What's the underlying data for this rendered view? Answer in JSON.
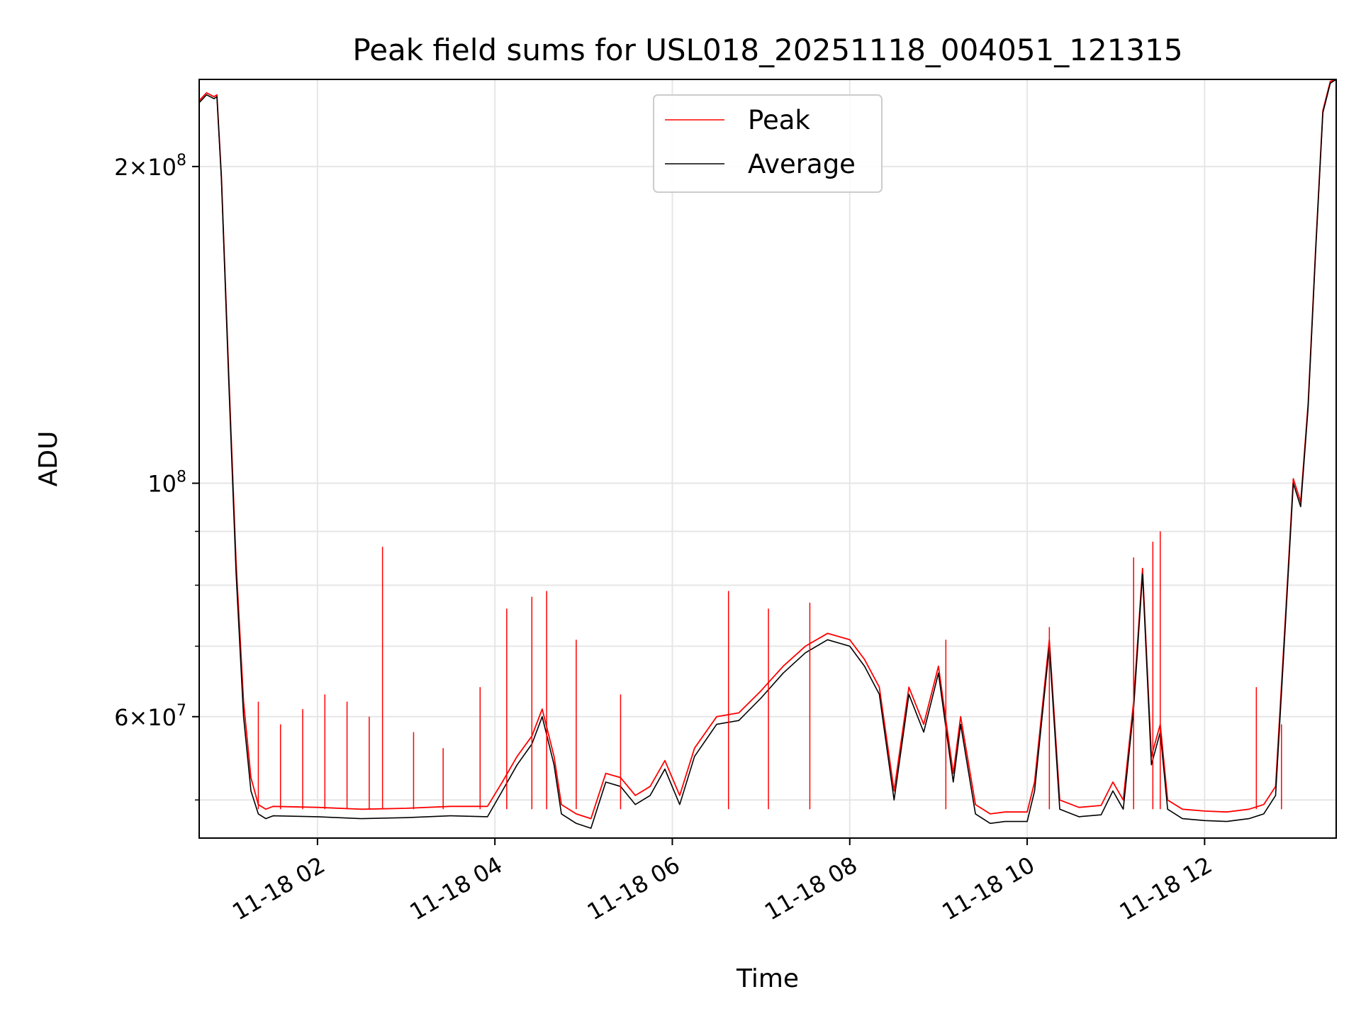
{
  "chart_data": {
    "type": "line",
    "title": "Peak field sums for USL018_20251118_004051_121315",
    "xlabel": "Time",
    "ylabel": "ADU",
    "y_scale": "log",
    "grid": true,
    "legend": {
      "placement": "upper-center",
      "entries": [
        {
          "name": "Peak",
          "color": "#ff0000"
        },
        {
          "name": "Average",
          "color": "#000000"
        }
      ]
    },
    "xlim": [
      "2025-11-18 00:40",
      "2025-11-18 13:29"
    ],
    "ylim": [
      46000000,
      242000000
    ],
    "x_ticks": [
      {
        "t": "2025-11-18 02:00",
        "label": "11-18 02"
      },
      {
        "t": "2025-11-18 04:00",
        "label": "11-18 04"
      },
      {
        "t": "2025-11-18 06:00",
        "label": "11-18 06"
      },
      {
        "t": "2025-11-18 08:00",
        "label": "11-18 08"
      },
      {
        "t": "2025-11-18 10:00",
        "label": "11-18 10"
      },
      {
        "t": "2025-11-18 12:00",
        "label": "11-18 12"
      }
    ],
    "y_major_ticks": [
      {
        "value": 60000000,
        "mantissa": "6",
        "exponent": "7"
      },
      {
        "value": 100000000,
        "mantissa": "",
        "exponent": "8"
      },
      {
        "value": 200000000,
        "mantissa": "2",
        "exponent": "8"
      }
    ],
    "y_minor_ticks": [
      50000000,
      70000000,
      80000000,
      90000000
    ],
    "series": [
      {
        "name": "Average",
        "color": "#000000",
        "x": [
          "2025-11-18 00:40",
          "2025-11-18 00:45",
          "2025-11-18 00:50",
          "2025-11-18 00:52",
          "2025-11-18 00:55",
          "2025-11-18 01:00",
          "2025-11-18 01:05",
          "2025-11-18 01:10",
          "2025-11-18 01:15",
          "2025-11-18 01:20",
          "2025-11-18 01:25",
          "2025-11-18 01:30",
          "2025-11-18 02:00",
          "2025-11-18 02:30",
          "2025-11-18 03:00",
          "2025-11-18 03:30",
          "2025-11-18 03:55",
          "2025-11-18 04:05",
          "2025-11-18 04:15",
          "2025-11-18 04:25",
          "2025-11-18 04:32",
          "2025-11-18 04:40",
          "2025-11-18 04:45",
          "2025-11-18 04:55",
          "2025-11-18 05:05",
          "2025-11-18 05:15",
          "2025-11-18 05:25",
          "2025-11-18 05:35",
          "2025-11-18 05:45",
          "2025-11-18 05:55",
          "2025-11-18 06:05",
          "2025-11-18 06:15",
          "2025-11-18 06:30",
          "2025-11-18 06:45",
          "2025-11-18 07:00",
          "2025-11-18 07:15",
          "2025-11-18 07:30",
          "2025-11-18 07:45",
          "2025-11-18 08:00",
          "2025-11-18 08:10",
          "2025-11-18 08:20",
          "2025-11-18 08:30",
          "2025-11-18 08:40",
          "2025-11-18 08:50",
          "2025-11-18 09:00",
          "2025-11-18 09:10",
          "2025-11-18 09:15",
          "2025-11-18 09:25",
          "2025-11-18 09:35",
          "2025-11-18 09:45",
          "2025-11-18 10:00",
          "2025-11-18 10:05",
          "2025-11-18 10:15",
          "2025-11-18 10:22",
          "2025-11-18 10:35",
          "2025-11-18 10:50",
          "2025-11-18 10:58",
          "2025-11-18 11:05",
          "2025-11-18 11:12",
          "2025-11-18 11:18",
          "2025-11-18 11:24",
          "2025-11-18 11:30",
          "2025-11-18 11:35",
          "2025-11-18 11:45",
          "2025-11-18 12:00",
          "2025-11-18 12:15",
          "2025-11-18 12:30",
          "2025-11-18 12:40",
          "2025-11-18 12:48",
          "2025-11-18 12:55",
          "2025-11-18 13:00",
          "2025-11-18 13:05",
          "2025-11-18 13:10",
          "2025-11-18 13:15",
          "2025-11-18 13:20",
          "2025-11-18 13:25",
          "2025-11-18 13:29"
        ],
        "values": [
          230000000,
          234000000,
          232000000,
          233000000,
          195000000,
          125000000,
          82000000,
          60000000,
          51000000,
          48500000,
          48000000,
          48300000,
          48200000,
          48000000,
          48100000,
          48300000,
          48200000,
          51000000,
          54000000,
          56500000,
          60000000,
          54000000,
          48500000,
          47500000,
          47000000,
          52000000,
          51500000,
          49500000,
          50500000,
          53500000,
          49500000,
          55000000,
          59000000,
          59500000,
          62500000,
          66000000,
          69000000,
          71000000,
          70000000,
          67000000,
          63000000,
          50000000,
          63000000,
          58000000,
          66000000,
          52000000,
          59000000,
          48500000,
          47500000,
          47700000,
          47700000,
          51000000,
          70000000,
          49000000,
          48200000,
          48400000,
          51000000,
          49000000,
          61000000,
          82000000,
          54000000,
          58000000,
          49000000,
          48000000,
          47800000,
          47700000,
          48000000,
          48500000,
          50500000,
          75000000,
          100000000,
          95000000,
          118000000,
          165000000,
          225000000,
          240000000,
          242000000
        ]
      },
      {
        "name": "Peak",
        "color": "#ff0000",
        "x": [
          "2025-11-18 00:40",
          "2025-11-18 00:45",
          "2025-11-18 00:50",
          "2025-11-18 00:52",
          "2025-11-18 00:55",
          "2025-11-18 01:00",
          "2025-11-18 01:05",
          "2025-11-18 01:10",
          "2025-11-18 01:15",
          "2025-11-18 01:20",
          "2025-11-18 01:25",
          "2025-11-18 01:30",
          "2025-11-18 02:00",
          "2025-11-18 02:30",
          "2025-11-18 03:00",
          "2025-11-18 03:30",
          "2025-11-18 03:55",
          "2025-11-18 04:05",
          "2025-11-18 04:15",
          "2025-11-18 04:25",
          "2025-11-18 04:32",
          "2025-11-18 04:40",
          "2025-11-18 04:45",
          "2025-11-18 04:55",
          "2025-11-18 05:05",
          "2025-11-18 05:15",
          "2025-11-18 05:25",
          "2025-11-18 05:35",
          "2025-11-18 05:45",
          "2025-11-18 05:55",
          "2025-11-18 06:05",
          "2025-11-18 06:15",
          "2025-11-18 06:30",
          "2025-11-18 06:45",
          "2025-11-18 07:00",
          "2025-11-18 07:15",
          "2025-11-18 07:30",
          "2025-11-18 07:45",
          "2025-11-18 08:00",
          "2025-11-18 08:10",
          "2025-11-18 08:20",
          "2025-11-18 08:30",
          "2025-11-18 08:40",
          "2025-11-18 08:50",
          "2025-11-18 09:00",
          "2025-11-18 09:10",
          "2025-11-18 09:15",
          "2025-11-18 09:25",
          "2025-11-18 09:35",
          "2025-11-18 09:45",
          "2025-11-18 10:00",
          "2025-11-18 10:05",
          "2025-11-18 10:15",
          "2025-11-18 10:22",
          "2025-11-18 10:35",
          "2025-11-18 10:50",
          "2025-11-18 10:58",
          "2025-11-18 11:05",
          "2025-11-18 11:12",
          "2025-11-18 11:18",
          "2025-11-18 11:24",
          "2025-11-18 11:30",
          "2025-11-18 11:35",
          "2025-11-18 11:45",
          "2025-11-18 12:00",
          "2025-11-18 12:15",
          "2025-11-18 12:30",
          "2025-11-18 12:40",
          "2025-11-18 12:48",
          "2025-11-18 12:55",
          "2025-11-18 13:00",
          "2025-11-18 13:05",
          "2025-11-18 13:10",
          "2025-11-18 13:15",
          "2025-11-18 13:20",
          "2025-11-18 13:25",
          "2025-11-18 13:29"
        ],
        "values": [
          231000000,
          235000000,
          233000000,
          234000000,
          196000000,
          127000000,
          84000000,
          62000000,
          52500000,
          49500000,
          49000000,
          49300000,
          49200000,
          49000000,
          49100000,
          49300000,
          49300000,
          52000000,
          55000000,
          57500000,
          61000000,
          55000000,
          49500000,
          48500000,
          48000000,
          53000000,
          52500000,
          50500000,
          51500000,
          54500000,
          50500000,
          56000000,
          60000000,
          60500000,
          63500000,
          67000000,
          70000000,
          72000000,
          71000000,
          68000000,
          64000000,
          51000000,
          64000000,
          59000000,
          67000000,
          53000000,
          60000000,
          49500000,
          48500000,
          48700000,
          48700000,
          52000000,
          71000000,
          50000000,
          49200000,
          49400000,
          52000000,
          50000000,
          62000000,
          83000000,
          55000000,
          59000000,
          50000000,
          49000000,
          48800000,
          48700000,
          49000000,
          49500000,
          51500000,
          76000000,
          101000000,
          96000000,
          119000000,
          166000000,
          226000000,
          241000000,
          242000000
        ]
      },
      {
        "name": "Peak spikes",
        "color": "#ff0000",
        "x": [
          "2025-11-18 01:20",
          "2025-11-18 01:35",
          "2025-11-18 01:50",
          "2025-11-18 02:05",
          "2025-11-18 02:20",
          "2025-11-18 02:35",
          "2025-11-18 02:44",
          "2025-11-18 03:05",
          "2025-11-18 03:25",
          "2025-11-18 03:50",
          "2025-11-18 04:08",
          "2025-11-18 04:25",
          "2025-11-18 04:35",
          "2025-11-18 04:55",
          "2025-11-18 05:25",
          "2025-11-18 06:38",
          "2025-11-18 07:05",
          "2025-11-18 07:33",
          "2025-11-18 09:05",
          "2025-11-18 10:15",
          "2025-11-18 11:12",
          "2025-11-18 11:25",
          "2025-11-18 11:30",
          "2025-11-18 12:35",
          "2025-11-18 12:52"
        ],
        "values": [
          62000000,
          59000000,
          61000000,
          63000000,
          62000000,
          60000000,
          87000000,
          58000000,
          56000000,
          64000000,
          76000000,
          78000000,
          79000000,
          71000000,
          63000000,
          79000000,
          76000000,
          77000000,
          71000000,
          73000000,
          85000000,
          88000000,
          90000000,
          64000000,
          59000000
        ]
      }
    ]
  }
}
